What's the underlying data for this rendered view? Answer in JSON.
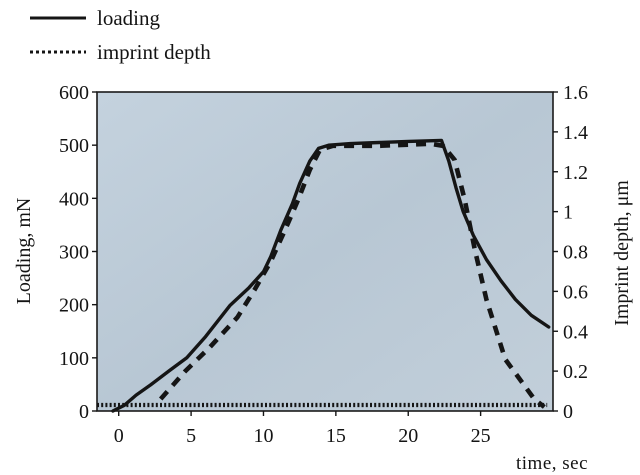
{
  "chart_data": {
    "type": "line",
    "title": "",
    "xlabel": "time, sec",
    "ylabel": "Loading, mN",
    "y2label": "Imprint depth, μm",
    "xlim": [
      -1.5,
      30
    ],
    "ylim": [
      0,
      600
    ],
    "y2lim": [
      0,
      1.6
    ],
    "xticks": [
      0,
      5,
      10,
      15,
      20,
      25
    ],
    "yticks": [
      0,
      100,
      200,
      300,
      400,
      500,
      600
    ],
    "y2ticks": [
      0,
      0.2,
      0.4,
      0.6,
      0.8,
      1,
      1.2,
      1.4,
      1.6
    ],
    "grid": false,
    "legend": "top-left",
    "series": [
      {
        "name": "loading",
        "y_axis": 1,
        "points": [
          [
            -0.4,
            0
          ],
          [
            0.4,
            11
          ],
          [
            1.2,
            30
          ],
          [
            2.2,
            49
          ],
          [
            3.5,
            76
          ],
          [
            4.7,
            100
          ],
          [
            6,
            140
          ],
          [
            7.7,
            199
          ],
          [
            9,
            232
          ],
          [
            10,
            262
          ],
          [
            10.5,
            290
          ],
          [
            11.2,
            340
          ],
          [
            12,
            390
          ],
          [
            12.5,
            428
          ],
          [
            13.2,
            470
          ],
          [
            13.8,
            494
          ],
          [
            14.5,
            500
          ],
          [
            16,
            503
          ],
          [
            18,
            505
          ],
          [
            20,
            507
          ],
          [
            22.3,
            509
          ],
          [
            22.8,
            470
          ],
          [
            23.3,
            420
          ],
          [
            23.8,
            375
          ],
          [
            24.5,
            330
          ],
          [
            25.4,
            285
          ],
          [
            26.4,
            245
          ],
          [
            27.4,
            210
          ],
          [
            28.5,
            180
          ],
          [
            29.7,
            158
          ]
        ]
      },
      {
        "name": "imprint depth",
        "y_axis": 2,
        "points": [
          [
            2.9,
            0.06
          ],
          [
            4.6,
            0.2
          ],
          [
            6.3,
            0.32
          ],
          [
            8.2,
            0.47
          ],
          [
            9.4,
            0.61
          ],
          [
            10.5,
            0.75
          ],
          [
            11.5,
            0.91
          ],
          [
            12.4,
            1.06
          ],
          [
            13.2,
            1.21
          ],
          [
            13.9,
            1.31
          ],
          [
            14.8,
            1.33
          ],
          [
            18,
            1.33
          ],
          [
            21.5,
            1.34
          ],
          [
            22.4,
            1.33
          ],
          [
            23.2,
            1.26
          ],
          [
            23.9,
            1.06
          ],
          [
            24.6,
            0.81
          ],
          [
            25.4,
            0.56
          ],
          [
            26.7,
            0.26
          ],
          [
            28.7,
            0.06
          ],
          [
            29.4,
            0.02
          ]
        ]
      },
      {
        "y_axis": 2,
        "points": [
          [
            -1.5,
            0.03
          ],
          [
            29.6,
            0.03
          ]
        ]
      }
    ],
    "colors": {
      "ink": "#151515",
      "plot_background": "#bccad7"
    }
  }
}
